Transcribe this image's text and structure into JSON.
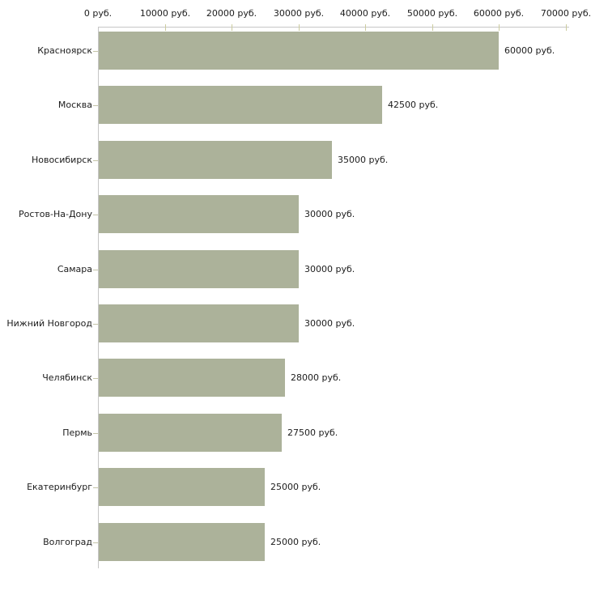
{
  "chart": {
    "colors": {
      "background": "#ffffff",
      "bar": "#acb29a",
      "axis": "#c6c6c6",
      "x_tick": "#cccc9f",
      "y_tick": "#c4c4a8",
      "text": "#1c1c1c"
    }
  },
  "chart_data": {
    "type": "bar",
    "orientation": "horizontal",
    "title": "",
    "xlabel": "",
    "ylabel": "",
    "unit": "руб.",
    "categories": [
      "Красноярск",
      "Москва",
      "Новосибирск",
      "Ростов-На-Дону",
      "Самара",
      "Нижний Новгород",
      "Челябинск",
      "Пермь",
      "Екатеринбург",
      "Волгоград"
    ],
    "values": [
      60000,
      42500,
      35000,
      30000,
      30000,
      30000,
      28000,
      27500,
      25000,
      25000
    ],
    "value_labels": [
      "60000 руб.",
      "42500 руб.",
      "35000 руб.",
      "30000 руб.",
      "30000 руб.",
      "30000 руб.",
      "28000 руб.",
      "27500 руб.",
      "25000 руб.",
      "25000 руб."
    ],
    "x_ticks": [
      0,
      10000,
      20000,
      30000,
      40000,
      50000,
      60000,
      70000
    ],
    "x_tick_labels": [
      "0 руб.",
      "10000 руб.",
      "20000 руб.",
      "30000 руб.",
      "40000 руб.",
      "50000 руб.",
      "60000 руб.",
      "70000 руб."
    ],
    "xlim": [
      0,
      70000
    ],
    "grid": false,
    "legend": null,
    "axis_position": "top"
  }
}
